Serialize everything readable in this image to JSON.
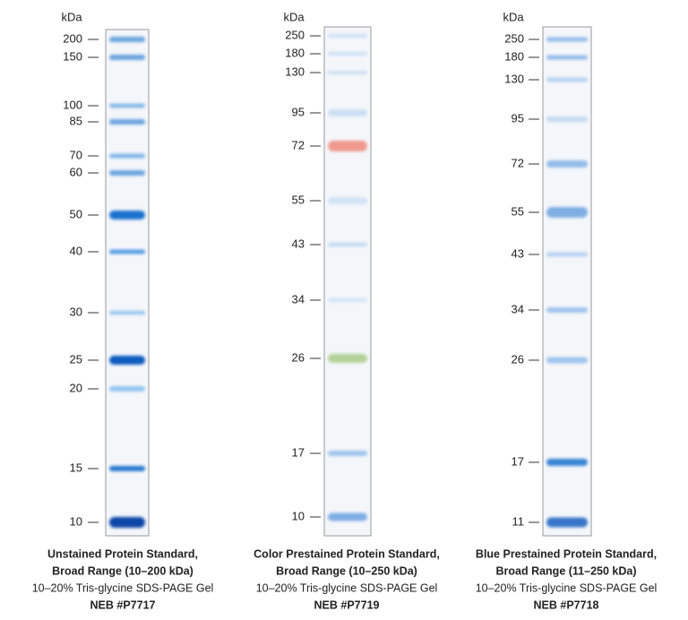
{
  "panels": [
    {
      "unit": "kDa",
      "markers": [
        200,
        150,
        100,
        85,
        70,
        60,
        50,
        40,
        30,
        25,
        20,
        15,
        10
      ],
      "title_lines": [
        "Unstained Protein Standard,",
        "Broad Range (10–200 kDa)"
      ],
      "subtitle": "10–20% Tris-glycine SDS-PAGE Gel",
      "catalog": "NEB #P7717"
    },
    {
      "unit": "kDa",
      "markers": [
        250,
        180,
        130,
        95,
        72,
        55,
        43,
        34,
        26,
        17,
        10
      ],
      "title_lines": [
        "Color Prestained Protein Standard,",
        "Broad Range (10–250 kDa)"
      ],
      "subtitle": "10–20% Tris-glycine SDS-PAGE Gel",
      "catalog": "NEB #P7719"
    },
    {
      "unit": "kDa",
      "markers": [
        250,
        180,
        130,
        95,
        72,
        55,
        43,
        34,
        26,
        17,
        11
      ],
      "title_lines": [
        "Blue Prestained Protein Standard,",
        "Broad Range (11–250 kDa)"
      ],
      "subtitle": "10–20% Tris-glycine SDS-PAGE Gel",
      "catalog": "NEB #P7718"
    }
  ]
}
